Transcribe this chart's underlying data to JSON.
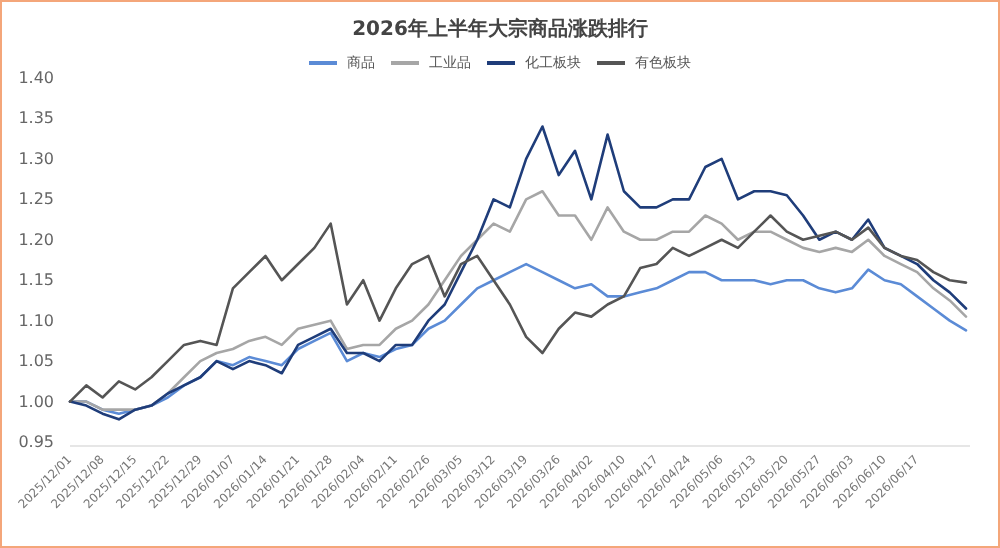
{
  "chart_data": {
    "type": "line",
    "title": "2026年上半年大宗商品涨跌排行",
    "categories": [
      "2025/12/01",
      null,
      "2025/12/08",
      null,
      "2025/12/15",
      null,
      "2025/12/22",
      null,
      "2025/12/29",
      null,
      "2026/01/07",
      null,
      "2026/01/14",
      null,
      "2026/01/21",
      null,
      "2026/01/28",
      null,
      "2026/02/04",
      null,
      "2026/02/11",
      null,
      "2026/02/26",
      null,
      "2026/03/05",
      null,
      "2026/03/12",
      null,
      "2026/03/19",
      null,
      "2026/03/26",
      null,
      "2026/04/02",
      null,
      "2026/04/10",
      null,
      "2026/04/17",
      null,
      "2026/04/24",
      null,
      "2026/05/06",
      null,
      "2026/05/13",
      null,
      "2026/05/20",
      null,
      "2026/05/27",
      null,
      "2026/06/03",
      null,
      "2026/06/10",
      null,
      "2026/06/17",
      null,
      null,
      null
    ],
    "series": [
      {
        "name": "商品",
        "color": "#5b8bd6",
        "values": [
          1.0,
          1.0,
          0.99,
          0.985,
          0.99,
          0.995,
          1.005,
          1.02,
          1.03,
          1.05,
          1.045,
          1.055,
          1.05,
          1.045,
          1.065,
          1.075,
          1.085,
          1.05,
          1.06,
          1.055,
          1.065,
          1.07,
          1.09,
          1.1,
          1.12,
          1.14,
          1.15,
          1.16,
          1.17,
          1.16,
          1.15,
          1.14,
          1.145,
          1.13,
          1.13,
          1.135,
          1.14,
          1.15,
          1.16,
          1.16,
          1.15,
          1.15,
          1.15,
          1.145,
          1.15,
          1.15,
          1.14,
          1.135,
          1.14,
          1.163,
          1.15,
          1.145,
          1.13,
          1.115,
          1.1,
          1.088
        ]
      },
      {
        "name": "工业品",
        "color": "#a6a6a6",
        "values": [
          1.0,
          1.0,
          0.99,
          0.99,
          0.99,
          0.995,
          1.01,
          1.03,
          1.05,
          1.06,
          1.065,
          1.075,
          1.08,
          1.07,
          1.09,
          1.095,
          1.1,
          1.065,
          1.07,
          1.07,
          1.09,
          1.1,
          1.12,
          1.15,
          1.18,
          1.2,
          1.22,
          1.21,
          1.25,
          1.26,
          1.23,
          1.23,
          1.2,
          1.24,
          1.21,
          1.2,
          1.2,
          1.21,
          1.21,
          1.23,
          1.22,
          1.2,
          1.21,
          1.21,
          1.2,
          1.19,
          1.185,
          1.19,
          1.185,
          1.2,
          1.18,
          1.17,
          1.16,
          1.14,
          1.125,
          1.105
        ]
      },
      {
        "name": "化工板块",
        "color": "#1f3d7a",
        "values": [
          1.0,
          0.995,
          0.985,
          0.978,
          0.99,
          0.995,
          1.01,
          1.02,
          1.03,
          1.05,
          1.04,
          1.05,
          1.045,
          1.035,
          1.07,
          1.08,
          1.09,
          1.06,
          1.06,
          1.05,
          1.07,
          1.07,
          1.1,
          1.12,
          1.16,
          1.2,
          1.25,
          1.24,
          1.3,
          1.34,
          1.28,
          1.31,
          1.25,
          1.33,
          1.26,
          1.24,
          1.24,
          1.25,
          1.25,
          1.29,
          1.3,
          1.25,
          1.26,
          1.26,
          1.255,
          1.23,
          1.2,
          1.21,
          1.2,
          1.225,
          1.19,
          1.18,
          1.17,
          1.15,
          1.135,
          1.115
        ]
      },
      {
        "name": "有色板块",
        "color": "#555555",
        "values": [
          1.0,
          1.02,
          1.005,
          1.025,
          1.015,
          1.03,
          1.05,
          1.07,
          1.075,
          1.07,
          1.14,
          1.16,
          1.18,
          1.15,
          1.17,
          1.19,
          1.22,
          1.12,
          1.15,
          1.1,
          1.14,
          1.17,
          1.18,
          1.13,
          1.17,
          1.18,
          1.15,
          1.12,
          1.08,
          1.06,
          1.09,
          1.11,
          1.105,
          1.12,
          1.13,
          1.165,
          1.17,
          1.19,
          1.18,
          1.19,
          1.2,
          1.19,
          1.21,
          1.23,
          1.21,
          1.2,
          1.205,
          1.21,
          1.2,
          1.215,
          1.19,
          1.18,
          1.175,
          1.16,
          1.15,
          1.147
        ]
      }
    ],
    "ylim": [
      0.95,
      1.4
    ],
    "yticks": [
      {
        "value": 0.95,
        "label": "0.95"
      },
      {
        "value": 1.0,
        "label": "1.00"
      },
      {
        "value": 1.05,
        "label": "1.05"
      },
      {
        "value": 1.1,
        "label": "1.10"
      },
      {
        "value": 1.15,
        "label": "1.15"
      },
      {
        "value": 1.2,
        "label": "1.20"
      },
      {
        "value": 1.25,
        "label": "1.25"
      },
      {
        "value": 1.3,
        "label": "1.30"
      },
      {
        "value": 1.35,
        "label": "1.35"
      },
      {
        "value": 1.4,
        "label": "1.40"
      }
    ],
    "grid": false,
    "legend": "top",
    "marker": "none",
    "line_style": "solid"
  }
}
